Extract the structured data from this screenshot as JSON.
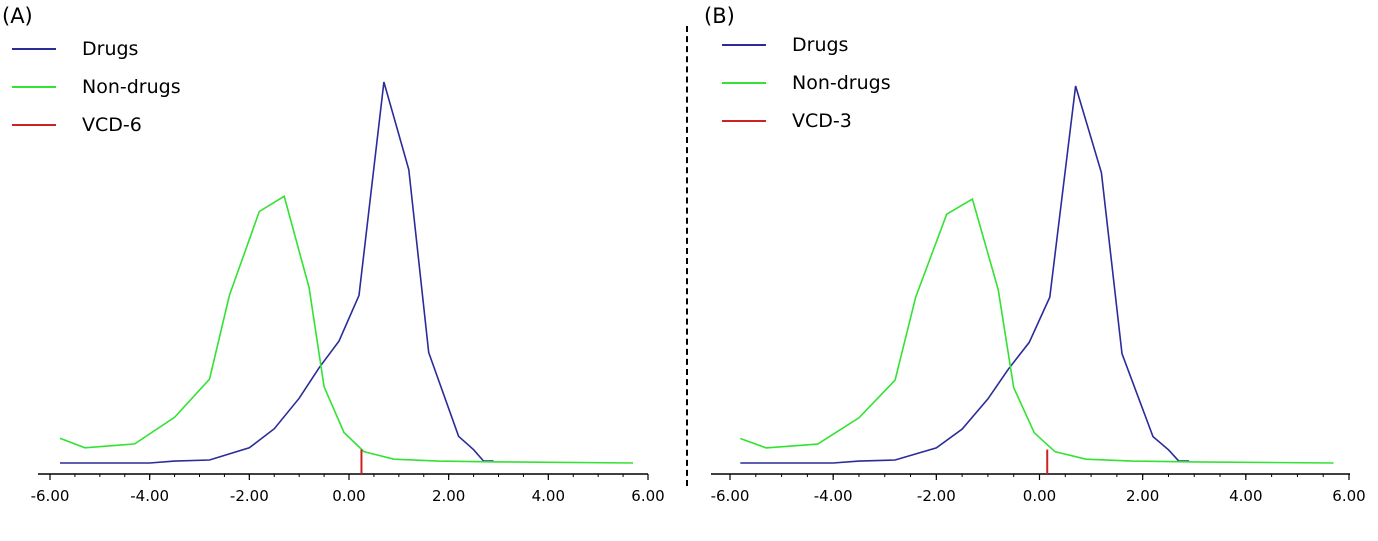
{
  "chart_data": [
    {
      "type": "line",
      "panel_label": "(A)",
      "xlim": [
        -6,
        6
      ],
      "ylim": [
        0,
        1
      ],
      "x_ticks": [
        "-6.00",
        "-4.00",
        "-2.00",
        "0.00",
        "2.00",
        "4.00",
        "6.00"
      ],
      "legend_placement": "top-left",
      "series": [
        {
          "name": "Drugs",
          "color": "#2b2b9a",
          "points": [
            [
              -5.8,
              0.0
            ],
            [
              -4.8,
              0.0
            ],
            [
              -4.0,
              0.0
            ],
            [
              -3.5,
              0.005
            ],
            [
              -2.8,
              0.008
            ],
            [
              -2.0,
              0.04
            ],
            [
              -1.5,
              0.09
            ],
            [
              -1.0,
              0.17
            ],
            [
              -0.6,
              0.25
            ],
            [
              -0.2,
              0.32
            ],
            [
              0.2,
              0.44
            ],
            [
              0.7,
              1.0
            ],
            [
              1.2,
              0.77
            ],
            [
              1.6,
              0.29
            ],
            [
              2.2,
              0.07
            ],
            [
              2.5,
              0.035
            ],
            [
              2.7,
              0.005
            ],
            [
              2.9,
              0.005
            ]
          ]
        },
        {
          "name": "Non-drugs",
          "color": "#33e233",
          "points": [
            [
              -5.8,
              0.065
            ],
            [
              -5.3,
              0.04
            ],
            [
              -4.3,
              0.05
            ],
            [
              -3.5,
              0.12
            ],
            [
              -2.8,
              0.22
            ],
            [
              -2.4,
              0.44
            ],
            [
              -1.8,
              0.66
            ],
            [
              -1.3,
              0.7
            ],
            [
              -0.8,
              0.46
            ],
            [
              -0.5,
              0.2
            ],
            [
              -0.1,
              0.08
            ],
            [
              0.3,
              0.03
            ],
            [
              0.9,
              0.01
            ],
            [
              1.8,
              0.005
            ],
            [
              3.0,
              0.003
            ],
            [
              5.7,
              0.0
            ]
          ]
        },
        {
          "name": "VCD-6",
          "color": "#cc2222",
          "x": 0.25,
          "y_top": 0.025
        }
      ]
    },
    {
      "type": "line",
      "panel_label": "(B)",
      "xlim": [
        -6,
        6
      ],
      "ylim": [
        0,
        1
      ],
      "x_ticks": [
        "-6.00",
        "-4.00",
        "-2.00",
        "0.00",
        "2.00",
        "4.00",
        "6.00"
      ],
      "legend_placement": "top-left",
      "series": [
        {
          "name": "Drugs",
          "color": "#2b2b9a",
          "points": [
            [
              -5.8,
              0.0
            ],
            [
              -4.8,
              0.0
            ],
            [
              -4.0,
              0.0
            ],
            [
              -3.5,
              0.005
            ],
            [
              -2.8,
              0.008
            ],
            [
              -2.0,
              0.04
            ],
            [
              -1.5,
              0.09
            ],
            [
              -1.0,
              0.17
            ],
            [
              -0.6,
              0.25
            ],
            [
              -0.2,
              0.32
            ],
            [
              0.2,
              0.44
            ],
            [
              0.7,
              1.0
            ],
            [
              1.2,
              0.77
            ],
            [
              1.6,
              0.29
            ],
            [
              2.2,
              0.07
            ],
            [
              2.5,
              0.035
            ],
            [
              2.7,
              0.005
            ],
            [
              2.9,
              0.005
            ]
          ]
        },
        {
          "name": "Non-drugs",
          "color": "#33e233",
          "points": [
            [
              -5.8,
              0.065
            ],
            [
              -5.3,
              0.04
            ],
            [
              -4.3,
              0.05
            ],
            [
              -3.5,
              0.12
            ],
            [
              -2.8,
              0.22
            ],
            [
              -2.4,
              0.44
            ],
            [
              -1.8,
              0.66
            ],
            [
              -1.3,
              0.7
            ],
            [
              -0.8,
              0.46
            ],
            [
              -0.5,
              0.2
            ],
            [
              -0.1,
              0.08
            ],
            [
              0.3,
              0.03
            ],
            [
              0.9,
              0.01
            ],
            [
              1.8,
              0.005
            ],
            [
              3.0,
              0.003
            ],
            [
              5.7,
              0.0
            ]
          ]
        },
        {
          "name": "VCD-3",
          "color": "#cc2222",
          "x": 0.15,
          "y_top": 0.025
        }
      ]
    }
  ]
}
